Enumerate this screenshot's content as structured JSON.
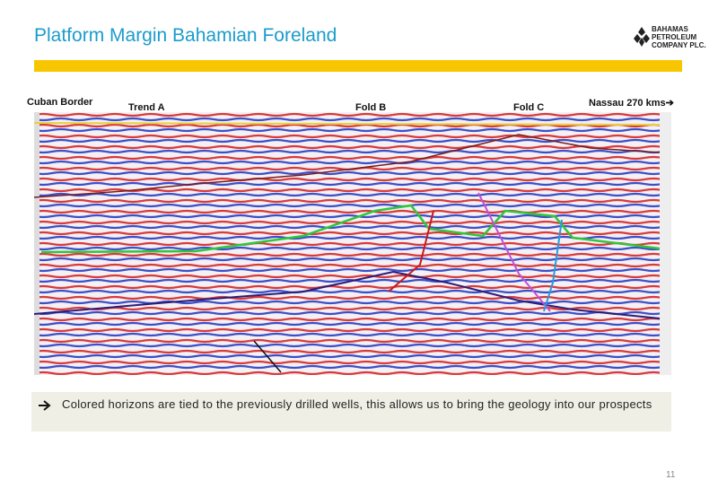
{
  "header": {
    "title": "Platform Margin Bahamian Foreland",
    "company": [
      "Bahamas",
      "Petroleum",
      "Company plc."
    ]
  },
  "section_labels": [
    "Cuban Border",
    "Trend A",
    "Fold B",
    "Fold C",
    "Nassau  270 kms➔"
  ],
  "bullet": "Colored horizons are tied to the previously drilled wells, this allows us to bring the geology into our prospects",
  "page_number": "11"
}
